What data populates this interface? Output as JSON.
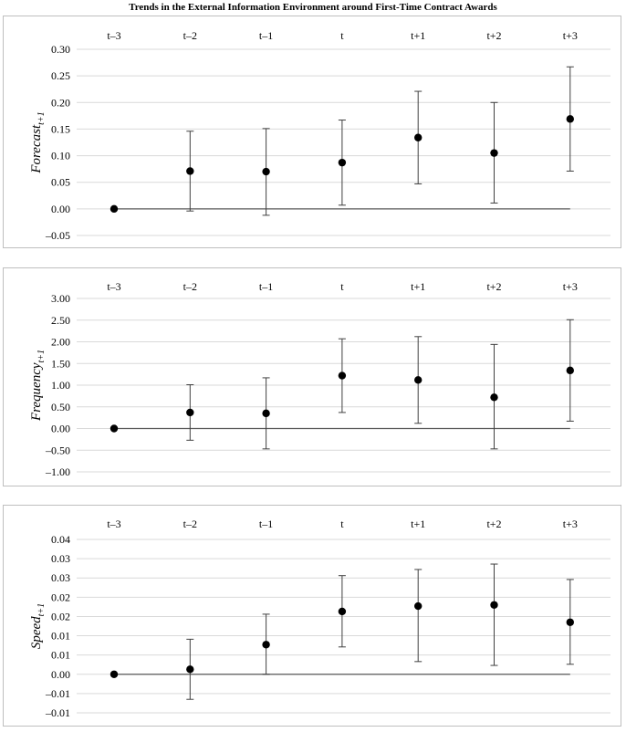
{
  "title": "Trends in the External Information Environment around First-Time Contract Awards",
  "chart_data": [
    {
      "type": "scatter",
      "ylabel": "Forecast",
      "ylabel_sub": "t+1",
      "categories": [
        "t–3",
        "t–2",
        "t–1",
        "t",
        "t+1",
        "t+2",
        "t+3"
      ],
      "yticks": [
        "0.30",
        "0.25",
        "0.20",
        "0.15",
        "0.10",
        "0.05",
        "0.00",
        "–0.05"
      ],
      "ylim": [
        -0.05,
        0.3
      ],
      "grid": true,
      "values": [
        0.0,
        0.071,
        0.07,
        0.087,
        0.134,
        0.105,
        0.169
      ],
      "lower": [
        0.0,
        -0.004,
        -0.012,
        0.007,
        0.047,
        0.011,
        0.071
      ],
      "upper": [
        0.0,
        0.146,
        0.151,
        0.167,
        0.221,
        0.2,
        0.267
      ]
    },
    {
      "type": "scatter",
      "ylabel": "Frequency",
      "ylabel_sub": "t+1",
      "categories": [
        "t–3",
        "t–2",
        "t–1",
        "t",
        "t+1",
        "t+2",
        "t+3"
      ],
      "yticks": [
        "3.00",
        "2.50",
        "2.00",
        "1.50",
        "1.00",
        "0.50",
        "0.00",
        "–0.50",
        "–1.00"
      ],
      "ylim": [
        -1.0,
        3.0
      ],
      "grid": true,
      "values": [
        0.0,
        0.37,
        0.35,
        1.22,
        1.12,
        0.72,
        1.34
      ],
      "lower": [
        0.0,
        -0.27,
        -0.47,
        0.37,
        0.12,
        -0.47,
        0.17
      ],
      "upper": [
        0.0,
        1.01,
        1.17,
        2.07,
        2.12,
        1.94,
        2.51
      ]
    },
    {
      "type": "scatter",
      "ylabel": "Speed",
      "ylabel_sub": "t+1",
      "categories": [
        "t–3",
        "t–2",
        "t–1",
        "t",
        "t+1",
        "t+2",
        "t+3"
      ],
      "yticks": [
        "0.04",
        "0.03",
        "0.03",
        "0.02",
        "0.02",
        "0.01",
        "0.01",
        "0.00",
        "–0.01",
        "–0.01"
      ],
      "ylim": [
        -0.01,
        0.035
      ],
      "grid": true,
      "values": [
        0.0,
        0.0013,
        0.0077,
        0.0163,
        0.0177,
        0.018,
        0.0135
      ],
      "lower": [
        0.0,
        -0.0065,
        0.0,
        0.0071,
        0.0033,
        0.0023,
        0.0026
      ],
      "upper": [
        0.0,
        0.0091,
        0.0156,
        0.0256,
        0.0272,
        0.0286,
        0.0246
      ]
    }
  ]
}
